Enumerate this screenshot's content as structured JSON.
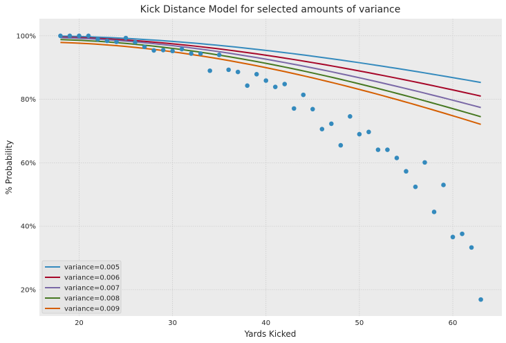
{
  "chart_data": {
    "type": "scatter+line",
    "title": "Kick Distance Model for selected amounts of variance",
    "xlabel": "Yards Kicked",
    "ylabel": "% Probability",
    "xlim": [
      15.75,
      65.25
    ],
    "ylim": [
      0.117,
      1.054
    ],
    "xticks": [
      20,
      30,
      40,
      50,
      60
    ],
    "yticks": [
      0.2,
      0.4,
      0.6,
      0.8,
      1.0
    ],
    "ytick_format": "percent",
    "grid": true,
    "legend_position": "lower-left",
    "colors": {
      "background": "#EBEBEB",
      "grid": "#CCCCCC",
      "scatter": "#348ABD"
    },
    "scatter": {
      "x": [
        18,
        19,
        20,
        21,
        22,
        23,
        24,
        25,
        26,
        27,
        28,
        29,
        30,
        31,
        32,
        33,
        34,
        35,
        36,
        37,
        38,
        39,
        40,
        41,
        42,
        43,
        44,
        45,
        46,
        47,
        48,
        49,
        50,
        51,
        52,
        53,
        54,
        55,
        56,
        57,
        58,
        59,
        60,
        61,
        62,
        63
      ],
      "y": [
        1.0,
        1.0,
        1.0,
        1.0,
        0.989,
        0.984,
        0.981,
        0.993,
        0.98,
        0.965,
        0.954,
        0.955,
        0.952,
        0.958,
        0.944,
        0.944,
        0.89,
        0.94,
        0.893,
        0.886,
        0.843,
        0.879,
        0.859,
        0.839,
        0.848,
        0.771,
        0.814,
        0.769,
        0.706,
        0.723,
        0.655,
        0.746,
        0.69,
        0.697,
        0.641,
        0.641,
        0.615,
        0.573,
        0.524,
        0.601,
        0.445,
        0.53,
        0.366,
        0.376,
        0.333,
        0.169
      ]
    },
    "series": [
      {
        "name": "variance=0.005",
        "color": "#348ABD",
        "x_range": [
          18,
          63
        ],
        "y_start": 0.999,
        "y_end": 0.853
      },
      {
        "name": "variance=0.006",
        "color": "#A60628",
        "x_range": [
          18,
          63
        ],
        "y_start": 0.996,
        "y_end": 0.81
      },
      {
        "name": "variance=0.007",
        "color": "#7A68A6",
        "x_range": [
          18,
          63
        ],
        "y_start": 0.994,
        "y_end": 0.774
      },
      {
        "name": "variance=0.008",
        "color": "#467821",
        "x_range": [
          18,
          63
        ],
        "y_start": 0.988,
        "y_end": 0.745
      },
      {
        "name": "variance=0.009",
        "color": "#D55E00",
        "x_range": [
          18,
          63
        ],
        "y_start": 0.979,
        "y_end": 0.721
      }
    ]
  }
}
